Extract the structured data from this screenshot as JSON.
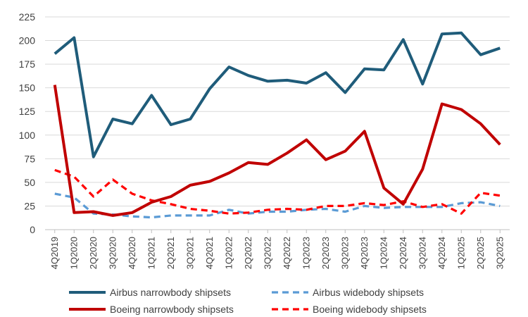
{
  "chart_data": {
    "type": "line",
    "title": "",
    "xlabel": "",
    "ylabel": "",
    "ylim": [
      0,
      225
    ],
    "y_ticks": [
      "0",
      "25",
      "50",
      "75",
      "100",
      "125",
      "150",
      "175",
      "200",
      "225"
    ],
    "gridlines": true,
    "legend_position": "bottom",
    "categories": [
      "4Q2019",
      "1Q2020",
      "2Q2020",
      "3Q2020",
      "4Q2020",
      "1Q2021",
      "2Q2021",
      "3Q2021",
      "4Q2021",
      "1Q2022",
      "2Q2022",
      "3Q2022",
      "4Q2022",
      "1Q2023",
      "2Q2023",
      "3Q2023",
      "4Q2023",
      "1Q2024",
      "2Q2024",
      "3Q2024",
      "4Q2024",
      "1Q2025",
      "2Q2025",
      "3Q2025"
    ],
    "series": [
      {
        "name": "Airbus narrowbody shipsets",
        "color": "#1f5c7a",
        "dash": "solid",
        "values": [
          186,
          203,
          77,
          117,
          112,
          142,
          111,
          117,
          149,
          172,
          163,
          157,
          158,
          155,
          166,
          145,
          170,
          169,
          201,
          154,
          207,
          208,
          185,
          192
        ]
      },
      {
        "name": "Airbus widebody shipsets",
        "color": "#5b9bd5",
        "dash": "dashed",
        "values": [
          38,
          34,
          17,
          16,
          14,
          13,
          15,
          15,
          15,
          21,
          17,
          19,
          19,
          21,
          22,
          19,
          25,
          23,
          24,
          24,
          24,
          28,
          29,
          25
        ]
      },
      {
        "name": "Boeing narrowbody shipsets",
        "color": "#c00000",
        "dash": "solid",
        "values": [
          153,
          18,
          19,
          15,
          18,
          29,
          35,
          47,
          51,
          60,
          71,
          69,
          81,
          95,
          74,
          83,
          104,
          44,
          27,
          64,
          133,
          127,
          112,
          90
        ]
      },
      {
        "name": "Boeing widebody shipsets",
        "color": "#ff0000",
        "dash": "dashed",
        "values": [
          63,
          56,
          35,
          53,
          38,
          31,
          27,
          22,
          20,
          17,
          18,
          21,
          22,
          21,
          25,
          25,
          28,
          26,
          30,
          24,
          27,
          17,
          39,
          36
        ]
      }
    ]
  }
}
